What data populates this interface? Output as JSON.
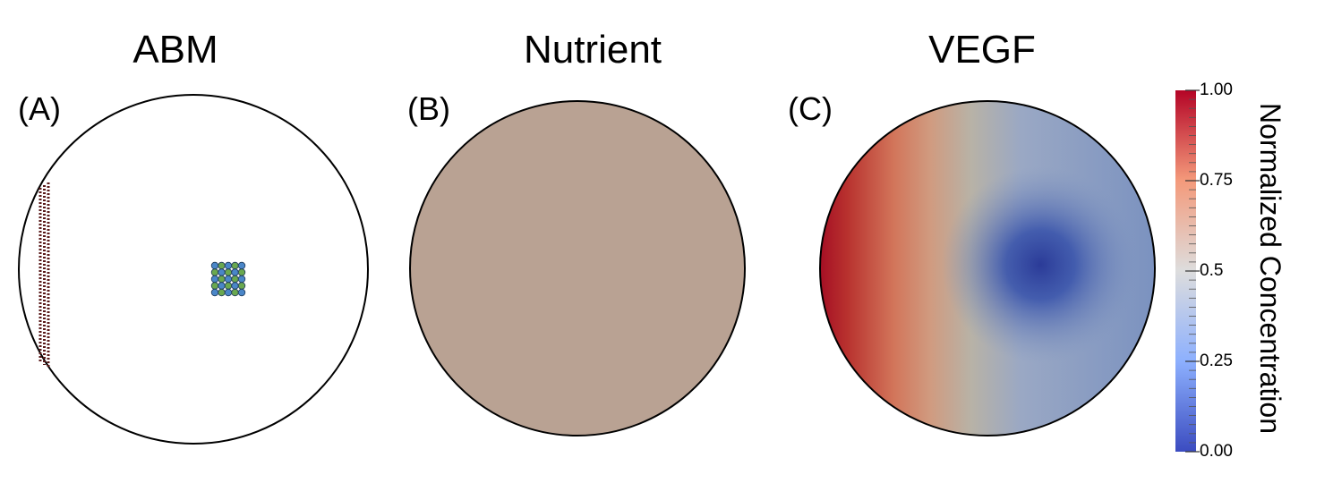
{
  "panels": [
    {
      "title": "ABM",
      "label": "(A)"
    },
    {
      "title": "Nutrient",
      "label": "(B)"
    },
    {
      "title": "VEGF",
      "label": "(C)"
    }
  ],
  "colorbar": {
    "label": "Normalized Concentration",
    "lim": [
      0,
      1
    ],
    "ticks": [
      {
        "value": 0,
        "label": "0.00"
      },
      0.25,
      0.5,
      0.75,
      {
        "value": 1,
        "label": "1.00"
      }
    ]
  }
}
